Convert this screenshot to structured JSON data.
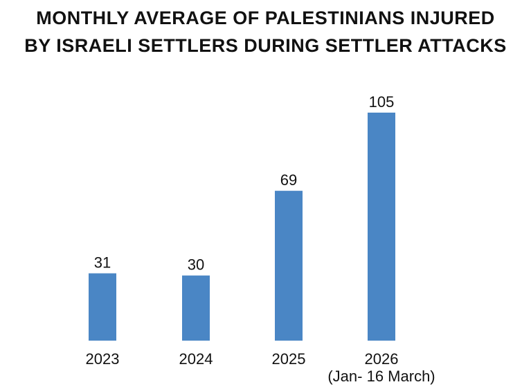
{
  "title_lines": [
    "MONTHLY AVERAGE OF PALESTINIANS INJURED",
    "BY ISRAELI SETTLERS DURING SETTLER ATTACKS"
  ],
  "chart_data": {
    "type": "bar",
    "title": "MONTHLY AVERAGE OF PALESTINIANS INJURED BY ISRAELI SETTLERS DURING SETTLER ATTACKS",
    "categories": [
      "2023",
      "2024",
      "2025",
      "2026"
    ],
    "category_sublabels": [
      "",
      "",
      "",
      "(Jan- 16 March)"
    ],
    "values": [
      31,
      30,
      69,
      105
    ],
    "bar_color": "#4a86c5",
    "xlabel": "",
    "ylabel": "",
    "ylim": [
      0,
      105
    ],
    "grid": false,
    "data_labels": true
  }
}
